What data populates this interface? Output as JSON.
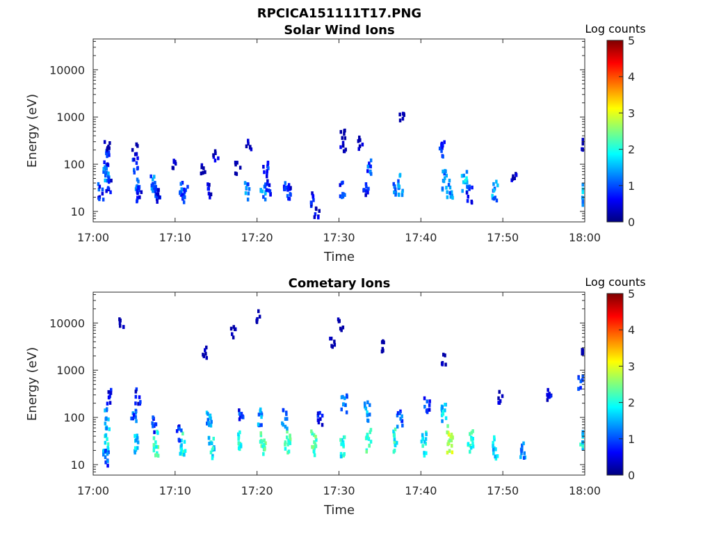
{
  "figure_title": "RPCICA151111T17.PNG",
  "colors": {
    "colormap": [
      "#00007f",
      "#0000ff",
      "#007fff",
      "#00ffff",
      "#7fff7f",
      "#ffff00",
      "#ff7f00",
      "#ff0000",
      "#7f0000"
    ]
  },
  "chart_data": [
    {
      "type": "heatmap",
      "title": "Solar Wind Ions",
      "xlabel": "Time",
      "ylabel": "Energy (eV)",
      "x_ticks": [
        "17:00",
        "17:10",
        "17:20",
        "17:30",
        "17:40",
        "17:50",
        "18:00"
      ],
      "x_range_minutes": [
        0,
        60
      ],
      "y_scale": "log",
      "y_ticks": [
        "10",
        "100",
        "1000",
        "10000"
      ],
      "y_range": [
        6,
        45000
      ],
      "colorbar": {
        "label": "Log counts",
        "range": [
          0,
          5
        ],
        "ticks": [
          "0",
          "1",
          "2",
          "3",
          "4",
          "5"
        ]
      },
      "data": [
        {
          "t": 0.8,
          "e": 28,
          "v": 1.2
        },
        {
          "t": 1.4,
          "e": 90,
          "v": 1.5
        },
        {
          "t": 1.5,
          "e": 150,
          "v": 1.2
        },
        {
          "t": 1.6,
          "e": 60,
          "v": 1.6
        },
        {
          "t": 1.8,
          "e": 40,
          "v": 1.0
        },
        {
          "t": 1.6,
          "e": 260,
          "v": 0.6
        },
        {
          "t": 5.0,
          "e": 100,
          "v": 1.2
        },
        {
          "t": 5.2,
          "e": 40,
          "v": 1.4
        },
        {
          "t": 5.0,
          "e": 220,
          "v": 0.6
        },
        {
          "t": 5.5,
          "e": 25,
          "v": 1.0
        },
        {
          "t": 7.2,
          "e": 40,
          "v": 1.5
        },
        {
          "t": 7.5,
          "e": 25,
          "v": 1.2
        },
        {
          "t": 7.9,
          "e": 30,
          "v": 1.0
        },
        {
          "t": 9.6,
          "e": 100,
          "v": 0.6
        },
        {
          "t": 10.7,
          "e": 30,
          "v": 1.4
        },
        {
          "t": 11.1,
          "e": 25,
          "v": 1.2
        },
        {
          "t": 13.2,
          "e": 90,
          "v": 0.6
        },
        {
          "t": 14.0,
          "e": 30,
          "v": 0.8
        },
        {
          "t": 14.8,
          "e": 160,
          "v": 0.6
        },
        {
          "t": 17.5,
          "e": 90,
          "v": 0.6
        },
        {
          "t": 18.6,
          "e": 30,
          "v": 1.6
        },
        {
          "t": 18.9,
          "e": 300,
          "v": 0.6
        },
        {
          "t": 20.6,
          "e": 30,
          "v": 1.7
        },
        {
          "t": 20.9,
          "e": 80,
          "v": 1.2
        },
        {
          "t": 21.2,
          "e": 35,
          "v": 1.0
        },
        {
          "t": 23.5,
          "e": 35,
          "v": 1.4
        },
        {
          "t": 23.9,
          "e": 25,
          "v": 1.0
        },
        {
          "t": 26.7,
          "e": 20,
          "v": 1.0
        },
        {
          "t": 27.2,
          "e": 10,
          "v": 0.8
        },
        {
          "t": 30.3,
          "e": 30,
          "v": 1.2
        },
        {
          "t": 30.4,
          "e": 250,
          "v": 0.6
        },
        {
          "t": 30.3,
          "e": 480,
          "v": 0.5
        },
        {
          "t": 32.4,
          "e": 300,
          "v": 0.6
        },
        {
          "t": 33.5,
          "e": 90,
          "v": 1.4
        },
        {
          "t": 33.2,
          "e": 30,
          "v": 1.0
        },
        {
          "t": 36.8,
          "e": 30,
          "v": 1.6
        },
        {
          "t": 37.4,
          "e": 40,
          "v": 1.8
        },
        {
          "t": 37.6,
          "e": 1200,
          "v": 0.5
        },
        {
          "t": 42.4,
          "e": 220,
          "v": 1.2
        },
        {
          "t": 42.8,
          "e": 50,
          "v": 1.7
        },
        {
          "t": 43.4,
          "e": 35,
          "v": 1.8
        },
        {
          "t": 45.2,
          "e": 45,
          "v": 2.0
        },
        {
          "t": 45.8,
          "e": 25,
          "v": 1.2
        },
        {
          "t": 48.9,
          "e": 30,
          "v": 1.7
        },
        {
          "t": 51.2,
          "e": 60,
          "v": 0.6
        },
        {
          "t": 59.8,
          "e": 25,
          "v": 1.8
        },
        {
          "t": 59.8,
          "e": 280,
          "v": 0.6
        }
      ]
    },
    {
      "type": "heatmap",
      "title": "Cometary Ions",
      "xlabel": "Time",
      "ylabel": "Energy (eV)",
      "x_ticks": [
        "17:00",
        "17:10",
        "17:20",
        "17:30",
        "17:40",
        "17:50",
        "18:00"
      ],
      "x_range_minutes": [
        0,
        60
      ],
      "y_scale": "log",
      "y_ticks": [
        "10",
        "100",
        "1000",
        "10000"
      ],
      "y_range": [
        6,
        45000
      ],
      "colorbar": {
        "label": "Log counts",
        "range": [
          0,
          5
        ],
        "ticks": [
          "0",
          "1",
          "2",
          "3",
          "4",
          "5"
        ]
      },
      "data": [
        {
          "t": 1.4,
          "e": 35,
          "v": 2.2
        },
        {
          "t": 1.6,
          "e": 100,
          "v": 1.8
        },
        {
          "t": 1.8,
          "e": 300,
          "v": 1.0
        },
        {
          "t": 1.4,
          "e": 15,
          "v": 1.4
        },
        {
          "t": 3.4,
          "e": 10000,
          "v": 0.6
        },
        {
          "t": 4.8,
          "e": 100,
          "v": 1.4
        },
        {
          "t": 5.1,
          "e": 30,
          "v": 2.0
        },
        {
          "t": 5.3,
          "e": 300,
          "v": 1.0
        },
        {
          "t": 7.6,
          "e": 30,
          "v": 2.6
        },
        {
          "t": 7.2,
          "e": 80,
          "v": 1.2
        },
        {
          "t": 10.8,
          "e": 30,
          "v": 2.3
        },
        {
          "t": 10.3,
          "e": 50,
          "v": 1.2
        },
        {
          "t": 13.4,
          "e": 2500,
          "v": 0.5
        },
        {
          "t": 14.0,
          "e": 100,
          "v": 1.8
        },
        {
          "t": 14.3,
          "e": 25,
          "v": 2.2
        },
        {
          "t": 17.0,
          "e": 7000,
          "v": 0.5
        },
        {
          "t": 17.7,
          "e": 30,
          "v": 2.4
        },
        {
          "t": 18.0,
          "e": 150,
          "v": 1.2
        },
        {
          "t": 20.0,
          "e": 15000,
          "v": 0.5
        },
        {
          "t": 20.6,
          "e": 35,
          "v": 2.7
        },
        {
          "t": 20.2,
          "e": 120,
          "v": 1.7
        },
        {
          "t": 23.6,
          "e": 30,
          "v": 2.5
        },
        {
          "t": 23.2,
          "e": 100,
          "v": 1.6
        },
        {
          "t": 26.8,
          "e": 30,
          "v": 2.6
        },
        {
          "t": 27.5,
          "e": 100,
          "v": 1.0
        },
        {
          "t": 29.1,
          "e": 4000,
          "v": 0.6
        },
        {
          "t": 30.1,
          "e": 10000,
          "v": 0.5
        },
        {
          "t": 30.3,
          "e": 25,
          "v": 2.3
        },
        {
          "t": 30.5,
          "e": 200,
          "v": 1.7
        },
        {
          "t": 33.5,
          "e": 35,
          "v": 2.5
        },
        {
          "t": 33.3,
          "e": 150,
          "v": 1.8
        },
        {
          "t": 35.0,
          "e": 3500,
          "v": 0.5
        },
        {
          "t": 36.7,
          "e": 35,
          "v": 2.4
        },
        {
          "t": 37.3,
          "e": 100,
          "v": 1.4
        },
        {
          "t": 40.2,
          "e": 30,
          "v": 2.2
        },
        {
          "t": 40.6,
          "e": 200,
          "v": 1.2
        },
        {
          "t": 42.6,
          "e": 1800,
          "v": 0.5
        },
        {
          "t": 43.4,
          "e": 35,
          "v": 3.2
        },
        {
          "t": 42.6,
          "e": 150,
          "v": 2.0
        },
        {
          "t": 45.9,
          "e": 30,
          "v": 2.5
        },
        {
          "t": 48.9,
          "e": 25,
          "v": 2.0
        },
        {
          "t": 49.5,
          "e": 300,
          "v": 0.6
        },
        {
          "t": 52.3,
          "e": 20,
          "v": 1.6
        },
        {
          "t": 55.5,
          "e": 300,
          "v": 1.0
        },
        {
          "t": 59.6,
          "e": 35,
          "v": 2.2
        },
        {
          "t": 59.4,
          "e": 600,
          "v": 1.2
        },
        {
          "t": 59.8,
          "e": 3000,
          "v": 0.5
        }
      ]
    }
  ]
}
